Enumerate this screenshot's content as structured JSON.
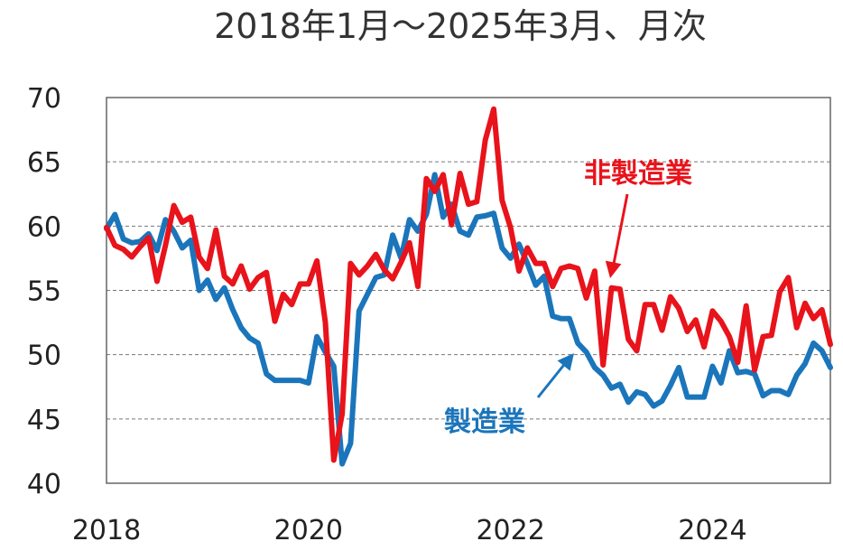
{
  "chart_data": {
    "type": "line",
    "title": "2018年1月～2025年3月、月次",
    "xlabel": "",
    "ylabel": "",
    "ylim": [
      40,
      70
    ],
    "xlim": [
      "2018-01",
      "2025-03"
    ],
    "yticks": [
      40,
      45,
      50,
      55,
      60,
      65,
      70
    ],
    "xticks": [
      2018,
      2020,
      2022,
      2024
    ],
    "grid": true,
    "series": [
      {
        "name": "製造業",
        "color": "#1b75bb",
        "x": [
          "2018-01",
          "2018-02",
          "2018-03",
          "2018-04",
          "2018-05",
          "2018-06",
          "2018-07",
          "2018-08",
          "2018-09",
          "2018-10",
          "2018-11",
          "2018-12",
          "2019-01",
          "2019-02",
          "2019-03",
          "2019-04",
          "2019-05",
          "2019-06",
          "2019-07",
          "2019-08",
          "2019-09",
          "2019-10",
          "2019-11",
          "2019-12",
          "2020-01",
          "2020-02",
          "2020-03",
          "2020-04",
          "2020-05",
          "2020-06",
          "2020-07",
          "2020-08",
          "2020-09",
          "2020-10",
          "2020-11",
          "2020-12",
          "2021-01",
          "2021-02",
          "2021-03",
          "2021-04",
          "2021-05",
          "2021-06",
          "2021-07",
          "2021-08",
          "2021-09",
          "2021-10",
          "2021-11",
          "2021-12",
          "2022-01",
          "2022-02",
          "2022-03",
          "2022-04",
          "2022-05",
          "2022-06",
          "2022-07",
          "2022-08",
          "2022-09",
          "2022-10",
          "2022-11",
          "2022-12",
          "2023-01",
          "2023-02",
          "2023-03",
          "2023-04",
          "2023-05",
          "2023-06",
          "2023-07",
          "2023-08",
          "2023-09",
          "2023-10",
          "2023-11",
          "2023-12",
          "2024-01",
          "2024-02",
          "2024-03",
          "2024-04",
          "2024-05",
          "2024-06",
          "2024-07",
          "2024-08",
          "2024-09",
          "2024-10",
          "2024-11",
          "2024-12",
          "2025-01",
          "2025-02",
          "2025-03"
        ],
        "values": [
          59.8,
          60.9,
          59.0,
          58.7,
          58.8,
          59.4,
          58.1,
          60.5,
          59.6,
          58.3,
          58.9,
          55.0,
          55.8,
          54.3,
          55.2,
          53.5,
          52.1,
          51.3,
          50.9,
          48.5,
          48.0,
          48.0,
          48.0,
          48.0,
          47.8,
          51.4,
          50.2,
          49.1,
          41.5,
          43.1,
          53.4,
          54.7,
          56.0,
          56.2,
          59.3,
          57.5,
          60.5,
          59.6,
          60.9,
          64.0,
          60.7,
          61.7,
          59.6,
          59.3,
          60.7,
          60.8,
          61.0,
          58.3,
          57.5,
          58.6,
          57.1,
          55.4,
          56.1,
          53.0,
          52.8,
          52.8,
          50.9,
          50.2,
          49.0,
          48.4,
          47.4,
          47.7,
          46.3,
          47.1,
          46.9,
          46.0,
          46.4,
          47.6,
          49.0,
          46.7,
          46.7,
          46.7,
          49.1,
          47.8,
          50.3,
          48.6,
          48.7,
          48.5,
          46.8,
          47.2,
          47.2,
          46.9,
          48.4,
          49.3,
          50.9,
          50.3,
          49.0
        ]
      },
      {
        "name": "非製造業",
        "color": "#e8131b",
        "x": [
          "2018-01",
          "2018-02",
          "2018-03",
          "2018-04",
          "2018-05",
          "2018-06",
          "2018-07",
          "2018-08",
          "2018-09",
          "2018-10",
          "2018-11",
          "2018-12",
          "2019-01",
          "2019-02",
          "2019-03",
          "2019-04",
          "2019-05",
          "2019-06",
          "2019-07",
          "2019-08",
          "2019-09",
          "2019-10",
          "2019-11",
          "2019-12",
          "2020-01",
          "2020-02",
          "2020-03",
          "2020-04",
          "2020-05",
          "2020-06",
          "2020-07",
          "2020-08",
          "2020-09",
          "2020-10",
          "2020-11",
          "2020-12",
          "2021-01",
          "2021-02",
          "2021-03",
          "2021-04",
          "2021-05",
          "2021-06",
          "2021-07",
          "2021-08",
          "2021-09",
          "2021-10",
          "2021-11",
          "2021-12",
          "2022-01",
          "2022-02",
          "2022-03",
          "2022-04",
          "2022-05",
          "2022-06",
          "2022-07",
          "2022-08",
          "2022-09",
          "2022-10",
          "2022-11",
          "2022-12",
          "2023-01",
          "2023-02",
          "2023-03",
          "2023-04",
          "2023-05",
          "2023-06",
          "2023-07",
          "2023-08",
          "2023-09",
          "2023-10",
          "2023-11",
          "2023-12",
          "2024-01",
          "2024-02",
          "2024-03",
          "2024-04",
          "2024-05",
          "2024-06",
          "2024-07",
          "2024-08",
          "2024-09",
          "2024-10",
          "2024-11",
          "2024-12",
          "2025-01",
          "2025-02",
          "2025-03"
        ],
        "values": [
          59.9,
          58.5,
          58.2,
          57.6,
          58.4,
          59.1,
          55.7,
          58.5,
          61.6,
          60.3,
          60.7,
          57.6,
          56.7,
          59.7,
          56.1,
          55.5,
          56.9,
          55.1,
          56.0,
          56.4,
          52.6,
          54.7,
          53.9,
          55.5,
          55.5,
          57.3,
          52.5,
          41.8,
          45.4,
          57.1,
          56.2,
          56.9,
          57.8,
          56.6,
          55.9,
          57.2,
          58.7,
          55.3,
          63.7,
          62.7,
          64.0,
          60.1,
          64.1,
          61.7,
          61.9,
          66.7,
          69.1,
          62.0,
          59.9,
          56.5,
          58.3,
          57.1,
          57.1,
          55.3,
          56.7,
          56.9,
          56.7,
          54.4,
          56.5,
          49.2,
          55.2,
          55.1,
          51.2,
          50.3,
          53.9,
          53.9,
          51.9,
          54.5,
          53.6,
          51.8,
          52.7,
          50.6,
          53.4,
          52.6,
          51.4,
          49.4,
          53.8,
          48.8,
          51.4,
          51.5,
          54.9,
          56.0,
          52.1,
          54.0,
          52.8,
          53.5,
          50.8
        ]
      }
    ],
    "annotations": [
      {
        "text": "非製造業",
        "color": "#e8131b"
      },
      {
        "text": "製造業",
        "color": "#1b75bb"
      }
    ]
  }
}
